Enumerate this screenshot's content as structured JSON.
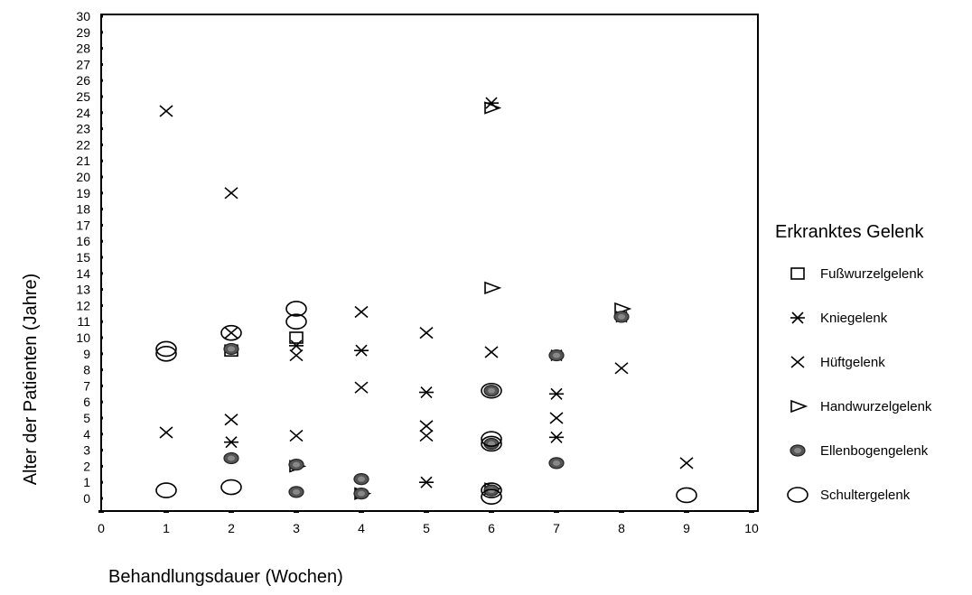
{
  "chart_data": {
    "type": "scatter",
    "xlabel": "Behandlungsdauer (Wochen)",
    "ylabel": "Alter der Patienten (Jahre)",
    "xlim": [
      0,
      10
    ],
    "ylim": [
      0,
      30
    ],
    "x_ticks": [
      "0",
      "1",
      "2",
      "3",
      "4",
      "5",
      "6",
      "7",
      "8",
      "9",
      "10"
    ],
    "y_ticks": [
      "0",
      "1",
      "2",
      "3",
      "4",
      "5",
      "6",
      "7",
      "8",
      "9",
      "10",
      "11",
      "12",
      "13",
      "14",
      "15",
      "16",
      "17",
      "18",
      "19",
      "20",
      "21",
      "22",
      "23",
      "24",
      "25",
      "26",
      "27",
      "28",
      "29",
      "30"
    ],
    "grid": false,
    "legend_title": "Erkranktes Gelenk",
    "legend_position": "right",
    "series": [
      {
        "name": "Fußwurzelgelenk",
        "marker": "square",
        "points": [
          [
            2,
            9.2
          ],
          [
            3,
            10.0
          ]
        ]
      },
      {
        "name": "Kniegelenk",
        "marker": "asterisk",
        "points": [
          [
            2,
            3.5
          ],
          [
            3,
            9.5
          ],
          [
            4,
            9.2
          ],
          [
            5,
            6.6
          ],
          [
            5,
            1.0
          ],
          [
            6,
            24.6
          ],
          [
            7,
            6.5
          ],
          [
            7,
            3.8
          ],
          [
            7,
            8.9
          ],
          [
            8,
            11.3
          ]
        ]
      },
      {
        "name": "Hüftgelenk",
        "marker": "x",
        "points": [
          [
            1,
            24.1
          ],
          [
            1,
            4.1
          ],
          [
            2,
            19.0
          ],
          [
            2,
            4.9
          ],
          [
            2,
            10.3
          ],
          [
            3,
            8.9
          ],
          [
            3,
            3.9
          ],
          [
            4,
            11.6
          ],
          [
            4,
            6.9
          ],
          [
            5,
            10.3
          ],
          [
            5,
            4.5
          ],
          [
            5,
            3.9
          ],
          [
            6,
            9.1
          ],
          [
            7,
            5.0
          ],
          [
            8,
            8.1
          ],
          [
            9,
            2.2
          ]
        ]
      },
      {
        "name": "Handwurzelgelenk",
        "marker": "triangle-right",
        "points": [
          [
            3,
            2.0
          ],
          [
            4,
            0.3
          ],
          [
            6,
            24.3
          ],
          [
            6,
            13.1
          ],
          [
            6,
            0.6
          ],
          [
            8,
            11.8
          ]
        ]
      },
      {
        "name": "Ellenbogengelenk",
        "marker": "filled-oval",
        "points": [
          [
            2,
            9.3
          ],
          [
            2,
            2.5
          ],
          [
            3,
            2.1
          ],
          [
            3,
            0.4
          ],
          [
            4,
            1.2
          ],
          [
            4,
            0.3
          ],
          [
            6,
            6.7
          ],
          [
            6,
            3.4
          ],
          [
            6,
            0.5
          ],
          [
            7,
            8.9
          ],
          [
            7,
            2.2
          ],
          [
            8,
            11.3
          ]
        ]
      },
      {
        "name": "Schultergelenk",
        "marker": "oval",
        "points": [
          [
            1,
            9.3
          ],
          [
            1,
            9.0
          ],
          [
            1,
            0.5
          ],
          [
            2,
            10.3
          ],
          [
            2,
            0.7
          ],
          [
            3,
            11.8
          ],
          [
            3,
            11.0
          ],
          [
            6,
            6.7
          ],
          [
            6,
            3.7
          ],
          [
            6,
            3.4
          ],
          [
            6,
            0.5
          ],
          [
            6,
            0.1
          ],
          [
            9,
            0.2
          ]
        ]
      }
    ]
  }
}
